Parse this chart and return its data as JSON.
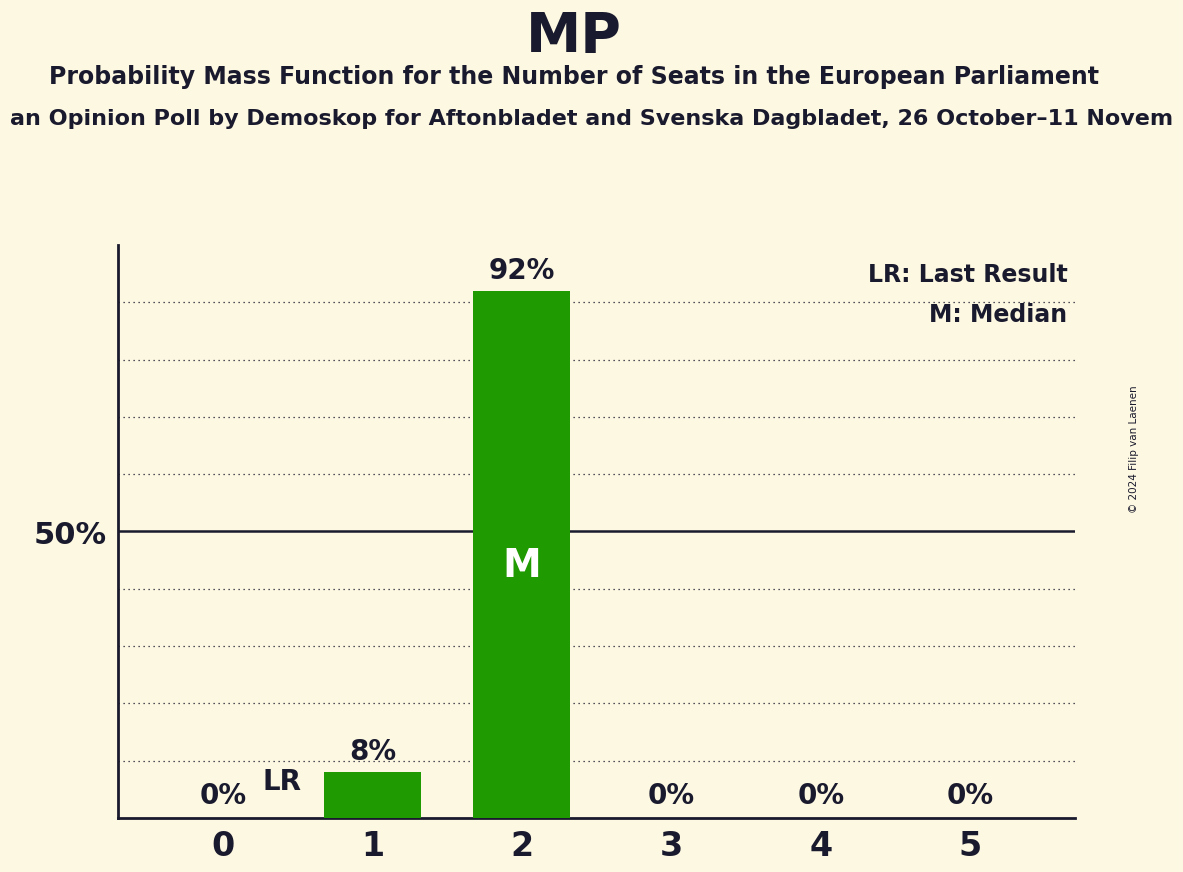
{
  "title": "MP",
  "subtitle": "Probability Mass Function for the Number of Seats in the European Parliament",
  "subtitle2": "an Opinion Poll by Demoskop for Aftonbladet and Svenska Dagbladet, 26 October–11 Novem",
  "copyright": "© 2024 Filip van Laenen",
  "categories": [
    0,
    1,
    2,
    3,
    4,
    5
  ],
  "values": [
    0,
    8,
    92,
    0,
    0,
    0
  ],
  "bar_color": "#1f9a00",
  "background_color": "#fdf8e1",
  "text_color": "#1a1a2e",
  "median_bar": 2,
  "last_result_bar": 1,
  "legend_lr": "LR: Last Result",
  "legend_m": "M: Median",
  "ylim": [
    0,
    100
  ],
  "dotted_yticks": [
    10,
    20,
    30,
    40,
    60,
    70,
    80,
    90
  ],
  "solid_ytick": 50,
  "bar_width": 0.65
}
